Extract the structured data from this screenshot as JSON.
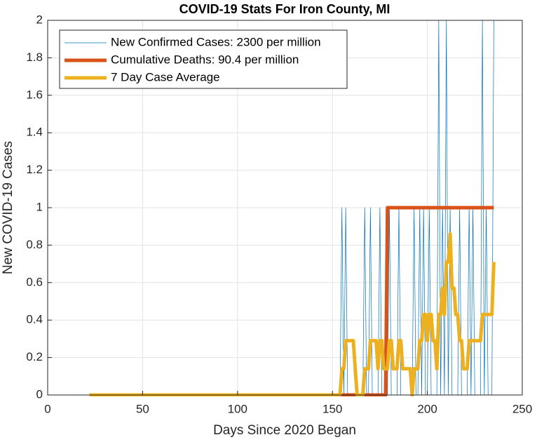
{
  "chart_data": {
    "type": "line",
    "title": "COVID-19 Stats For Iron County, MI",
    "x_label": "Days Since 2020 Began",
    "y_label": "New COVID-19 Cases",
    "xlim": [
      0,
      250
    ],
    "xticks": [
      0,
      50,
      100,
      150,
      200,
      250
    ],
    "ylim": [
      0,
      2
    ],
    "yticks": [
      0,
      0.2,
      0.4,
      0.6,
      0.8,
      1,
      1.2,
      1.4,
      1.6,
      1.8,
      2
    ],
    "grid": true,
    "legend": "northwest",
    "series": [
      {
        "name": "New Confirmed Cases: 2300 per million",
        "color": "#0072BD",
        "width": 0.7,
        "x": [
          22,
          154,
          155,
          156,
          157,
          158,
          166,
          167,
          168,
          169,
          170,
          171,
          174,
          175,
          176,
          179,
          180,
          181,
          184,
          185,
          186,
          192,
          193,
          194,
          195,
          196,
          197,
          198,
          199,
          200,
          201,
          202,
          205,
          206,
          207,
          208,
          209,
          210,
          211,
          212,
          213,
          216,
          217,
          218,
          221,
          222,
          223,
          224,
          225,
          228,
          229,
          230,
          231,
          232,
          234,
          235
        ],
        "values": [
          0,
          0,
          1,
          0,
          1,
          0,
          0,
          1,
          0,
          0,
          1,
          0,
          0,
          1,
          0,
          0,
          1,
          0,
          0,
          1,
          0,
          0,
          1,
          0,
          0,
          1,
          0,
          1,
          0,
          0,
          1,
          0,
          0,
          2,
          0,
          1,
          0,
          2,
          0,
          1,
          0,
          0,
          1,
          0,
          0,
          1,
          0,
          1,
          0,
          0,
          2,
          0,
          1,
          0,
          0,
          2
        ]
      },
      {
        "name": "Cumulative Deaths: 90.4 per million",
        "color": "#D95319",
        "width": 5,
        "x": [
          22,
          178,
          179,
          235
        ],
        "values": [
          0,
          0,
          1,
          1
        ]
      },
      {
        "name": "7 Day Case Average",
        "color": "#EDB120",
        "width": 5,
        "x": [
          22,
          154,
          155,
          156,
          157,
          158,
          159,
          160,
          161,
          162,
          163,
          164,
          165,
          166,
          167,
          168,
          169,
          170,
          171,
          172,
          173,
          174,
          175,
          176,
          177,
          178,
          179,
          180,
          181,
          182,
          183,
          184,
          185,
          186,
          187,
          188,
          189,
          190,
          191,
          192,
          193,
          194,
          195,
          196,
          197,
          198,
          199,
          200,
          201,
          202,
          203,
          204,
          205,
          206,
          207,
          208,
          209,
          210,
          211,
          212,
          213,
          214,
          215,
          216,
          217,
          218,
          219,
          220,
          221,
          222,
          223,
          224,
          225,
          226,
          227,
          228,
          229,
          230,
          231,
          232,
          233,
          234,
          235
        ],
        "values": [
          0,
          0,
          0.14,
          0.14,
          0.29,
          0.29,
          0.29,
          0.29,
          0.29,
          0.14,
          0,
          0,
          0,
          0,
          0.14,
          0.14,
          0.14,
          0.29,
          0.29,
          0.29,
          0.29,
          0.14,
          0.29,
          0.29,
          0.14,
          0.14,
          0.14,
          0.29,
          0.29,
          0.14,
          0.14,
          0.14,
          0.29,
          0.29,
          0.14,
          0.14,
          0.14,
          0.14,
          0.14,
          0,
          0.14,
          0.14,
          0.14,
          0.29,
          0.29,
          0.43,
          0.43,
          0.29,
          0.43,
          0.43,
          0.29,
          0.29,
          0.14,
          0.43,
          0.43,
          0.57,
          0.43,
          0.71,
          0.71,
          0.86,
          0.57,
          0.57,
          0.43,
          0.43,
          0.29,
          0.29,
          0.14,
          0.14,
          0.14,
          0.29,
          0.29,
          0.29,
          0.29,
          0.29,
          0.29,
          0.29,
          0.43,
          0.43,
          0.43,
          0.43,
          0.43,
          0.43,
          0.71
        ]
      }
    ]
  }
}
